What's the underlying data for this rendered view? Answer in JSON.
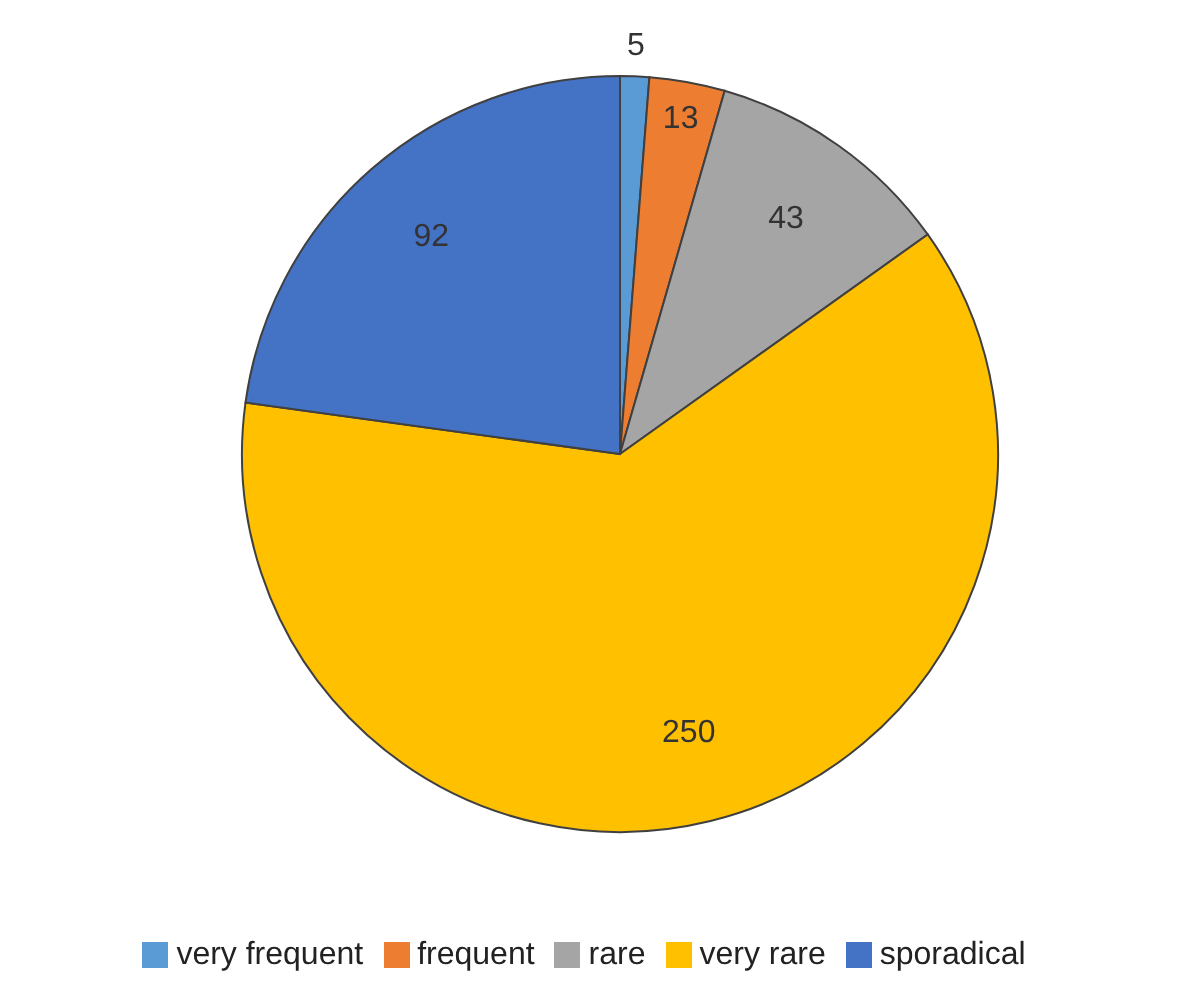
{
  "chart_data": {
    "type": "pie",
    "categories": [
      "very frequent",
      "frequent",
      "rare",
      "very rare",
      "sporadical"
    ],
    "values": [
      5,
      13,
      43,
      250,
      92
    ],
    "colors": [
      "#5b9bd5",
      "#ed7d31",
      "#a5a5a5",
      "#ffc000",
      "#4472c4"
    ],
    "data_labels": true,
    "legend": "bottom"
  }
}
